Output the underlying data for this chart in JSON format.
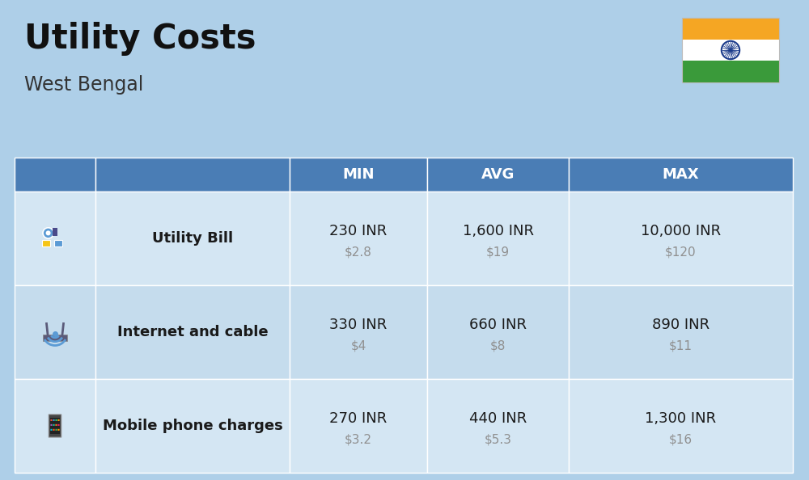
{
  "title": "Utility Costs",
  "subtitle": "West Bengal",
  "background_color": "#aecfe8",
  "header_bg_color": "#4a7db5",
  "header_text_color": "#ffffff",
  "row_bg_colors": [
    "#d4e6f3",
    "#c5dced"
  ],
  "cell_text_color": "#1a1a1a",
  "usd_text_color": "#909090",
  "col_headers": [
    "MIN",
    "AVG",
    "MAX"
  ],
  "rows": [
    {
      "label": "Utility Bill",
      "min_inr": "230 INR",
      "min_usd": "$2.8",
      "avg_inr": "1,600 INR",
      "avg_usd": "$19",
      "max_inr": "10,000 INR",
      "max_usd": "$120"
    },
    {
      "label": "Internet and cable",
      "min_inr": "330 INR",
      "min_usd": "$4",
      "avg_inr": "660 INR",
      "avg_usd": "$8",
      "max_inr": "890 INR",
      "max_usd": "$11"
    },
    {
      "label": "Mobile phone charges",
      "min_inr": "270 INR",
      "min_usd": "$3.2",
      "avg_inr": "440 INR",
      "avg_usd": "$5.3",
      "max_inr": "1,300 INR",
      "max_usd": "$16"
    }
  ],
  "flag_colors": [
    "#f5a623",
    "#ffffff",
    "#3a9a3a"
  ],
  "title_fontsize": 30,
  "subtitle_fontsize": 17,
  "header_fontsize": 13,
  "label_fontsize": 13,
  "inr_fontsize": 13,
  "usd_fontsize": 11
}
